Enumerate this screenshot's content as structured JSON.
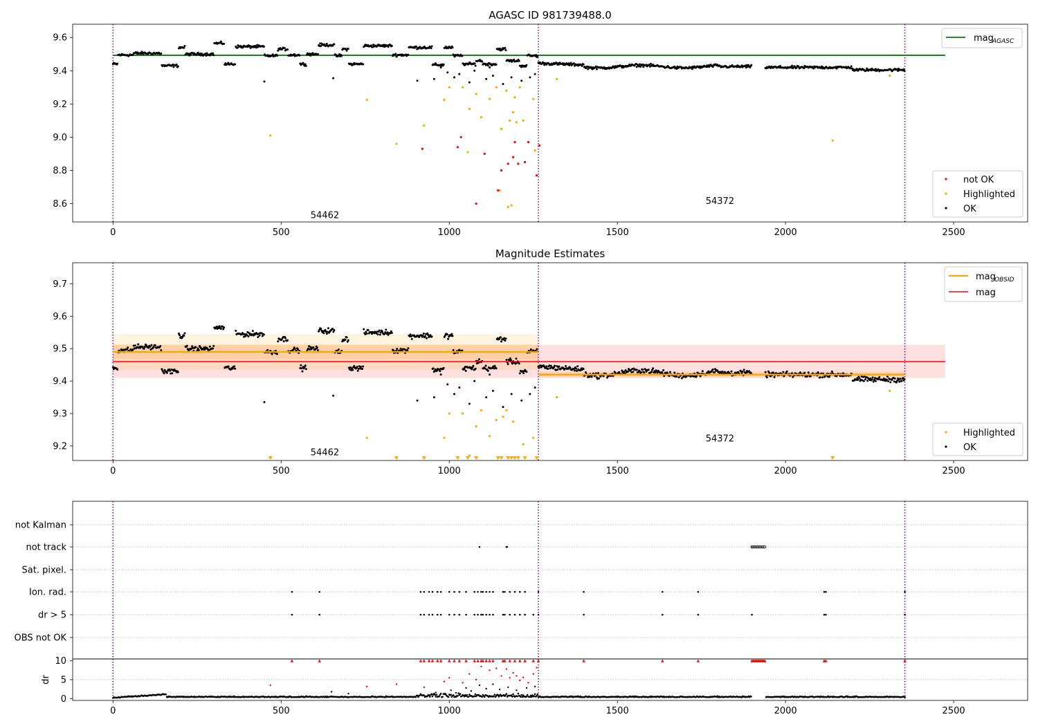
{
  "figure": {
    "title": "AGASC ID 981739488.0"
  },
  "colors": {
    "ok": "#000000",
    "highlighted": "#ffa500",
    "not_ok": "#ff0000",
    "agasc_line": "#008000",
    "mag_line": "#ff0000",
    "obsid_line": "#ffa500",
    "obs_boundary": "#800080",
    "flag_grid": "#b0b0b0"
  },
  "chart_data": [
    {
      "type": "scatter",
      "title": "AGASC ID 981739488.0",
      "xlim": [
        -120,
        2720
      ],
      "ylim": [
        8.49,
        9.68
      ],
      "xticks": [
        0,
        500,
        1000,
        1500,
        2000,
        2500
      ],
      "yticks": [
        8.6,
        8.8,
        9.0,
        9.2,
        9.4,
        9.6
      ],
      "ytick_labels": [
        "8.6",
        "8.8",
        "9.0",
        "9.2",
        "9.4",
        "9.6"
      ],
      "grid": false,
      "obs_boundaries": [
        0,
        1265,
        2355
      ],
      "observation_labels": [
        {
          "text": "54462",
          "x": 630,
          "y": 8.53
        },
        {
          "text": "54372",
          "x": 1805,
          "y": 8.615
        }
      ],
      "lines": [
        {
          "name": "mag",
          "sub": "AGASC",
          "y": 9.493,
          "x": [
            0,
            2475
          ],
          "color": "#008000"
        }
      ],
      "legend_upper": {
        "position": "upper-right",
        "entries": [
          {
            "label": "mag",
            "sub": "AGASC",
            "color": "#008000"
          }
        ]
      },
      "legend_lower": {
        "position": "lower-right",
        "entries": [
          {
            "label": "not OK",
            "color": "#ff0000"
          },
          {
            "label": "Highlighted",
            "color": "#ffa500"
          },
          {
            "label": "OK",
            "color": "#000000"
          }
        ]
      },
      "highlighted_points": [
        [
          468,
          9.01
        ],
        [
          755,
          9.225
        ],
        [
          843,
          8.96
        ],
        [
          925,
          9.07
        ],
        [
          985,
          9.225
        ],
        [
          1000,
          9.3
        ],
        [
          1040,
          9.3
        ],
        [
          1060,
          9.17
        ],
        [
          1080,
          9.26
        ],
        [
          1095,
          9.12
        ],
        [
          1120,
          9.23
        ],
        [
          1140,
          9.3
        ],
        [
          1150,
          8.68
        ],
        [
          1155,
          9.05
        ],
        [
          1170,
          9.28
        ],
        [
          1180,
          9.1
        ],
        [
          1190,
          9.15
        ],
        [
          1195,
          9.24
        ],
        [
          1200,
          9.09
        ],
        [
          1210,
          9.3
        ],
        [
          1220,
          9.1
        ],
        [
          1250,
          9.23
        ],
        [
          1255,
          8.92
        ],
        [
          1320,
          9.35
        ],
        [
          2140,
          8.98
        ],
        [
          2310,
          9.37
        ],
        [
          1055,
          8.91
        ],
        [
          1185,
          8.59
        ],
        [
          1175,
          8.58
        ]
      ],
      "not_ok_points": [
        [
          920,
          8.93
        ],
        [
          1025,
          8.94
        ],
        [
          1035,
          9.0
        ],
        [
          1080,
          8.6
        ],
        [
          1105,
          8.9
        ],
        [
          1145,
          8.68
        ],
        [
          1155,
          8.8
        ],
        [
          1175,
          8.84
        ],
        [
          1190,
          8.88
        ],
        [
          1195,
          8.97
        ],
        [
          1205,
          8.84
        ],
        [
          1225,
          8.85
        ],
        [
          1235,
          8.97
        ],
        [
          1260,
          8.77
        ],
        [
          1268,
          8.95
        ]
      ]
    },
    {
      "type": "scatter",
      "title": "Magnitude Estimates",
      "xlim": [
        -120,
        2720
      ],
      "ylim": [
        9.155,
        9.765
      ],
      "xticks": [
        0,
        500,
        1000,
        1500,
        2000,
        2500
      ],
      "yticks": [
        9.2,
        9.3,
        9.4,
        9.5,
        9.6,
        9.7
      ],
      "ytick_labels": [
        "9.2",
        "9.3",
        "9.4",
        "9.5",
        "9.6",
        "9.7"
      ],
      "grid": false,
      "obs_boundaries": [
        0,
        1265,
        2355
      ],
      "observation_labels": [
        {
          "text": "54462",
          "x": 630,
          "y": 9.18
        },
        {
          "text": "54372",
          "x": 1805,
          "y": 9.222
        }
      ],
      "mag": {
        "value": 9.46,
        "band": [
          9.41,
          9.512
        ],
        "x": [
          0,
          2475
        ],
        "color": "#ff0000"
      },
      "mag_obsid": [
        {
          "x": [
            0,
            1265
          ],
          "value": 9.49,
          "outer": [
            9.435,
            9.545
          ],
          "inner": [
            9.468,
            9.512
          ]
        },
        {
          "x": [
            1265,
            2355
          ],
          "value": 9.42,
          "outer": [
            9.41,
            9.43
          ],
          "inner": [
            9.415,
            9.425
          ]
        }
      ],
      "legend_upper": {
        "position": "upper-right",
        "entries": [
          {
            "label": "mag",
            "sub": "OBSID",
            "color": "#ffa500"
          },
          {
            "label": "mag",
            "color": "#ff0000"
          }
        ]
      },
      "legend_lower": {
        "position": "lower-right",
        "entries": [
          {
            "label": "Highlighted",
            "color": "#ffa500"
          },
          {
            "label": "OK",
            "color": "#000000"
          }
        ]
      },
      "highlighted_points": [
        [
          755,
          9.225
        ],
        [
          985,
          9.225
        ],
        [
          1000,
          9.3
        ],
        [
          1040,
          9.3
        ],
        [
          1060,
          9.17
        ],
        [
          1080,
          9.26
        ],
        [
          1095,
          9.31
        ],
        [
          1120,
          9.23
        ],
        [
          1140,
          9.28
        ],
        [
          1170,
          9.31
        ],
        [
          1190,
          9.275
        ],
        [
          1220,
          9.205
        ],
        [
          1250,
          9.225
        ],
        [
          1320,
          9.35
        ],
        [
          2310,
          9.37
        ],
        [
          1160,
          9.29
        ]
      ],
      "off_scale_markers_x": [
        468,
        843,
        925,
        1025,
        1055,
        1080,
        1145,
        1155,
        1175,
        1185,
        1195,
        1205,
        1225,
        1260,
        2140
      ]
    },
    {
      "type": "scatter",
      "title": "",
      "xlim": [
        -120,
        2720
      ],
      "xticks": [
        0,
        500,
        1000,
        1500,
        2000,
        2500
      ],
      "obs_boundaries": [
        0,
        1265,
        2355
      ],
      "flag_rows": [
        "not Kalman",
        "not track",
        "Sat. pixel.",
        "Ion. rad.",
        "dr > 5",
        "OBS not OK"
      ],
      "flags": {
        "not track": [
          1090,
          1170,
          1172
        ],
        "Ion. rad.": [
          532,
          614,
          915,
          925,
          940,
          950,
          965,
          975,
          1000,
          1015,
          1030,
          1050,
          1075,
          1085,
          1095,
          1100,
          1110,
          1120,
          1130,
          1160,
          1165,
          1180,
          1195,
          1210,
          1225,
          1265,
          1400,
          1634,
          1740,
          2115,
          2120,
          2355
        ],
        "dr > 5": [
          532,
          614,
          915,
          925,
          940,
          950,
          965,
          975,
          1000,
          1015,
          1030,
          1050,
          1075,
          1085,
          1095,
          1100,
          1110,
          1120,
          1130,
          1160,
          1165,
          1180,
          1195,
          1210,
          1225,
          1250,
          1265,
          1400,
          1634,
          1740,
          1900,
          2115,
          2120,
          2355
        ]
      },
      "not_track_span": [
        1900,
        1940
      ],
      "dr": {
        "ylabel": "dr",
        "ylim": [
          -0.5,
          10.5
        ],
        "yticks": [
          0,
          5,
          10
        ],
        "ytick_labels": [
          "0",
          "5",
          "10"
        ],
        "clipped_color": "#ff0000",
        "clipped_x": [
          532,
          614,
          915,
          925,
          940,
          950,
          965,
          975,
          1000,
          1015,
          1030,
          1050,
          1075,
          1085,
          1095,
          1100,
          1110,
          1120,
          1130,
          1160,
          1165,
          1180,
          1195,
          1210,
          1225,
          1250,
          1265,
          1400,
          1634,
          1740,
          2115,
          2120,
          2355
        ],
        "red_points": [
          [
            468,
            3.5
          ],
          [
            755,
            3.2
          ],
          [
            843,
            3.8
          ],
          [
            925,
            3.0
          ],
          [
            985,
            4.5
          ],
          [
            1000,
            5.5
          ],
          [
            1040,
            4.2
          ],
          [
            1060,
            6.5
          ],
          [
            1080,
            5.0
          ],
          [
            1095,
            8.5
          ],
          [
            1120,
            7.5
          ],
          [
            1140,
            8.0
          ],
          [
            1155,
            6.0
          ],
          [
            1170,
            7.8
          ],
          [
            1180,
            5.5
          ],
          [
            1190,
            6.8
          ],
          [
            1200,
            6.0
          ],
          [
            1210,
            4.8
          ],
          [
            1220,
            5.6
          ],
          [
            1235,
            4.2
          ],
          [
            1250,
            6.5
          ],
          [
            1260,
            8.2
          ]
        ],
        "black_spikes": [
          [
            1005,
            2.2
          ],
          [
            1020,
            1.5
          ],
          [
            1050,
            2.8
          ],
          [
            1065,
            2.0
          ],
          [
            1090,
            3.5
          ],
          [
            1110,
            2.6
          ],
          [
            1130,
            3.8
          ],
          [
            1150,
            2.4
          ],
          [
            1175,
            3.0
          ],
          [
            1200,
            2.2
          ],
          [
            1230,
            2.8
          ],
          [
            1255,
            3.2
          ],
          [
            650,
            1.8
          ],
          [
            700,
            1.3
          ],
          [
            960,
            1.6
          ]
        ]
      }
    }
  ]
}
